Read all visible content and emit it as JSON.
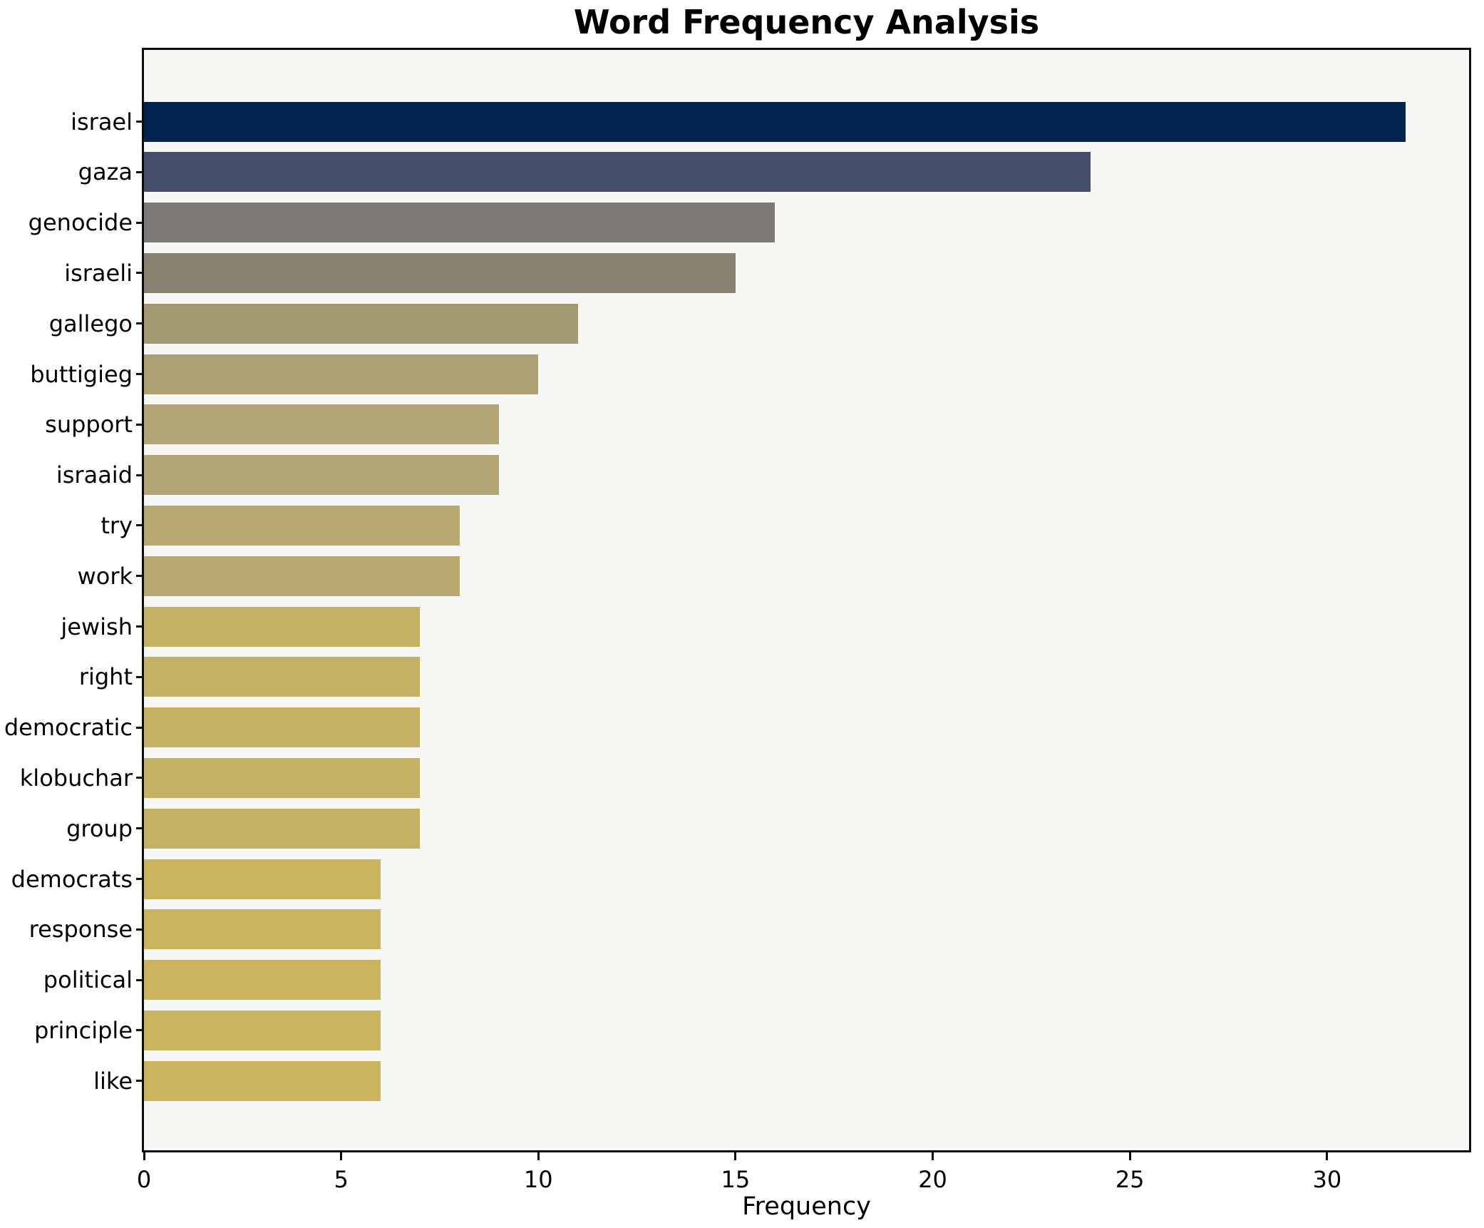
{
  "chart_data": {
    "type": "bar",
    "orientation": "horizontal",
    "title": "Word Frequency Analysis",
    "xlabel": "Frequency",
    "ylabel": "",
    "categories": [
      "israel",
      "gaza",
      "genocide",
      "israeli",
      "gallego",
      "buttigieg",
      "support",
      "israaid",
      "try",
      "work",
      "jewish",
      "right",
      "democratic",
      "klobuchar",
      "group",
      "democrats",
      "response",
      "political",
      "principle",
      "like"
    ],
    "values": [
      32,
      24,
      16,
      15,
      11,
      10,
      9,
      9,
      8,
      8,
      7,
      7,
      7,
      7,
      7,
      6,
      6,
      6,
      6,
      6
    ],
    "bar_colors": [
      "#02234d",
      "#46506b",
      "#7b7a76",
      "#868170",
      "#a39a74",
      "#aca074",
      "#b2a577",
      "#b2a577",
      "#b6a973",
      "#b6a973",
      "#c4b164",
      "#c4b164",
      "#c4b164",
      "#c4b164",
      "#c4b164",
      "#cab45f",
      "#cab45f",
      "#cab45f",
      "#cab45f",
      "#cab45f"
    ],
    "xticks": [
      0,
      5,
      10,
      15,
      20,
      25,
      30
    ],
    "xlim": [
      0,
      33.6
    ],
    "grid": false,
    "legend": null,
    "plot_bg": "#f7f7f5",
    "figure_bg": "#ffffff",
    "spine_color": "#0d0d0d"
  }
}
